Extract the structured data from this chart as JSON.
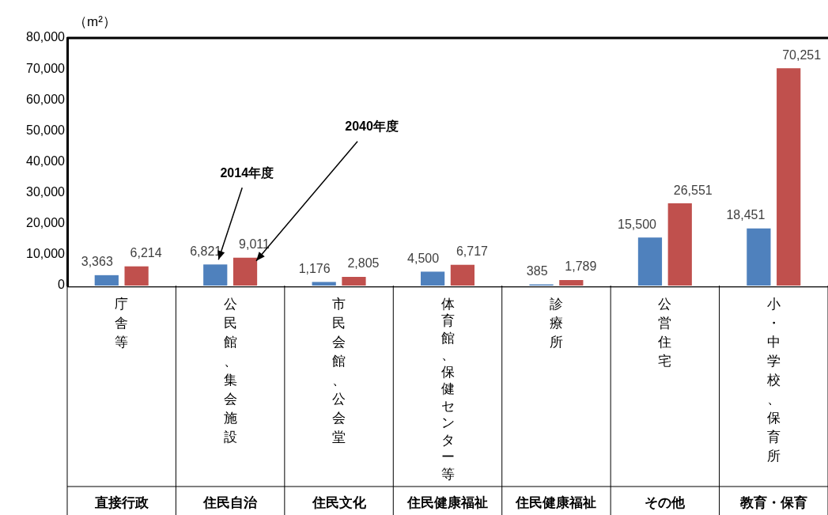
{
  "chart_data": {
    "type": "bar",
    "ylabel": "（m²）",
    "categories": [
      "庁舎等",
      "公民館、集会施設",
      "市民会館、公会堂",
      "体育館、保健センター等",
      "診療所",
      "公営住宅",
      "小・中学校、保育所"
    ],
    "series": [
      {
        "name": "2014年度",
        "color": "#4f81bd",
        "values": [
          3363,
          6821,
          1176,
          4500,
          385,
          15500,
          18451
        ],
        "value_labels": [
          "3,363",
          "6,821",
          "1,176",
          "4,500",
          "385",
          "15,500",
          "18,451"
        ]
      },
      {
        "name": "2040年度",
        "color": "#c0504d",
        "values": [
          6214,
          9011,
          2805,
          6717,
          1789,
          26551,
          70251
        ],
        "value_labels": [
          "6,214",
          "9,011",
          "2,805",
          "6,717",
          "1,789",
          "26,551",
          "70,251"
        ]
      }
    ],
    "ylim": [
      0,
      80000
    ],
    "yticks": [
      0,
      {
        "value": 10000,
        "label": "10,000"
      },
      {
        "value": 20000,
        "label": "20,000"
      },
      {
        "value": 30000,
        "label": "30,000"
      },
      {
        "value": 40000,
        "label": "40,000"
      },
      {
        "value": 50000,
        "label": "50,000"
      },
      {
        "value": 60000,
        "label": "60,000"
      },
      {
        "value": 70000,
        "label": "70,000"
      },
      {
        "value": 80000,
        "label": "80,000"
      }
    ],
    "legend": false,
    "grid": false,
    "annotations": [
      "直接行政",
      "住民自治",
      "住民文化",
      "住民健康福祉",
      "住民健康福祉",
      "その他",
      "教育・保育"
    ]
  }
}
